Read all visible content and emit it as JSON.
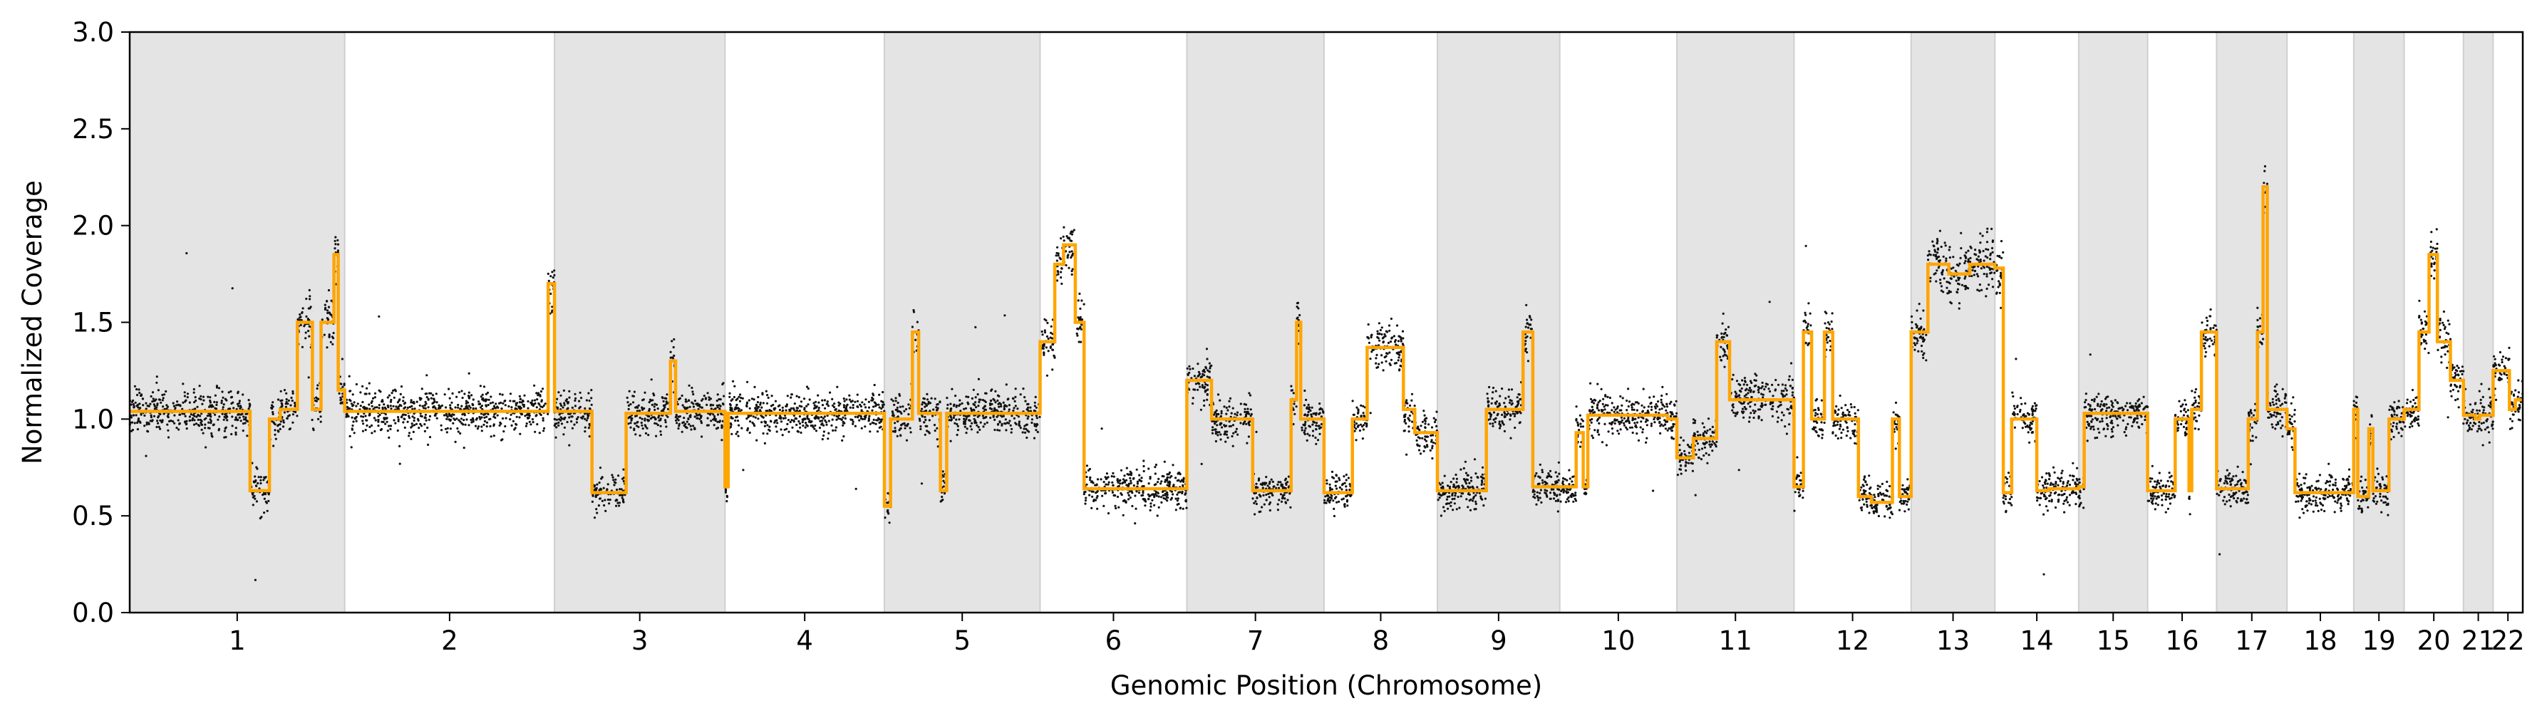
{
  "chart_data": {
    "type": "scatter",
    "title": "",
    "xlabel": "Genomic Position (Chromosome)",
    "ylabel": "Normalized Coverage",
    "ylim": [
      0,
      3.0
    ],
    "yticks": [
      0.0,
      0.5,
      1.0,
      1.5,
      2.0,
      2.5,
      3.0
    ],
    "ytick_labels": [
      "0.0",
      "0.5",
      "1.0",
      "1.5",
      "2.0",
      "2.5",
      "3.0"
    ],
    "grid": false,
    "alternating_chromosome_shading": true,
    "colors": {
      "points": "#111111",
      "segments": "#FFA500",
      "shade": "#E4E4E4",
      "shade_border": "#CFCFCF"
    },
    "chromosomes": [
      {
        "name": "1",
        "label": "1",
        "shaded": true,
        "segments": [
          [
            0.0,
            0.56,
            1.04
          ],
          [
            0.56,
            0.65,
            0.63
          ],
          [
            0.65,
            0.7,
            1.0
          ],
          [
            0.7,
            0.78,
            1.05
          ],
          [
            0.78,
            0.85,
            1.5
          ],
          [
            0.85,
            0.89,
            1.05
          ],
          [
            0.89,
            0.95,
            1.5
          ],
          [
            0.95,
            0.97,
            1.85
          ],
          [
            0.97,
            1.0,
            1.15
          ]
        ]
      },
      {
        "name": "2",
        "label": "2",
        "shaded": false,
        "segments": [
          [
            0.0,
            0.97,
            1.04
          ],
          [
            0.97,
            1.0,
            1.7
          ]
        ]
      },
      {
        "name": "3",
        "label": "3",
        "shaded": true,
        "segments": [
          [
            0.0,
            0.22,
            1.04
          ],
          [
            0.22,
            0.42,
            0.62
          ],
          [
            0.42,
            0.68,
            1.03
          ],
          [
            0.68,
            0.71,
            1.3
          ],
          [
            0.71,
            1.0,
            1.04
          ]
        ]
      },
      {
        "name": "4",
        "label": "4",
        "shaded": false,
        "segments": [
          [
            0.0,
            0.02,
            0.65
          ],
          [
            0.02,
            1.0,
            1.03
          ]
        ]
      },
      {
        "name": "5",
        "label": "5",
        "shaded": true,
        "segments": [
          [
            0.0,
            0.04,
            0.55
          ],
          [
            0.04,
            0.18,
            1.0
          ],
          [
            0.18,
            0.22,
            1.45
          ],
          [
            0.22,
            0.36,
            1.03
          ],
          [
            0.36,
            0.4,
            0.63
          ],
          [
            0.4,
            1.0,
            1.03
          ]
        ]
      },
      {
        "name": "6",
        "label": "6",
        "shaded": false,
        "segments": [
          [
            0.0,
            0.1,
            1.4
          ],
          [
            0.1,
            0.16,
            1.8
          ],
          [
            0.16,
            0.24,
            1.9
          ],
          [
            0.24,
            0.3,
            1.5
          ],
          [
            0.3,
            1.0,
            0.64
          ]
        ]
      },
      {
        "name": "7",
        "label": "7",
        "shaded": true,
        "segments": [
          [
            0.0,
            0.18,
            1.2
          ],
          [
            0.18,
            0.48,
            1.0
          ],
          [
            0.48,
            0.76,
            0.63
          ],
          [
            0.76,
            0.8,
            1.1
          ],
          [
            0.8,
            0.83,
            1.5
          ],
          [
            0.83,
            1.0,
            1.0
          ]
        ]
      },
      {
        "name": "8",
        "label": "8",
        "shaded": false,
        "segments": [
          [
            0.0,
            0.25,
            0.62
          ],
          [
            0.25,
            0.38,
            1.0
          ],
          [
            0.38,
            0.7,
            1.37
          ],
          [
            0.7,
            0.8,
            1.05
          ],
          [
            0.8,
            1.0,
            0.93
          ]
        ]
      },
      {
        "name": "9",
        "label": "9",
        "shaded": true,
        "segments": [
          [
            0.0,
            0.4,
            0.63
          ],
          [
            0.4,
            0.7,
            1.05
          ],
          [
            0.7,
            0.78,
            1.45
          ],
          [
            0.78,
            1.0,
            0.65
          ]
        ]
      },
      {
        "name": "10",
        "label": "10",
        "shaded": false,
        "segments": [
          [
            0.0,
            0.14,
            0.65
          ],
          [
            0.14,
            0.2,
            0.93
          ],
          [
            0.2,
            0.24,
            0.65
          ],
          [
            0.24,
            0.92,
            1.02
          ],
          [
            0.92,
            1.0,
            1.0
          ]
        ]
      },
      {
        "name": "11",
        "label": "11",
        "shaded": true,
        "segments": [
          [
            0.0,
            0.14,
            0.8
          ],
          [
            0.14,
            0.34,
            0.9
          ],
          [
            0.34,
            0.45,
            1.4
          ],
          [
            0.45,
            1.0,
            1.1
          ]
        ]
      },
      {
        "name": "12",
        "label": "12",
        "shaded": false,
        "segments": [
          [
            0.0,
            0.08,
            0.65
          ],
          [
            0.08,
            0.15,
            1.45
          ],
          [
            0.15,
            0.26,
            1.0
          ],
          [
            0.26,
            0.33,
            1.45
          ],
          [
            0.33,
            0.55,
            1.0
          ],
          [
            0.55,
            0.66,
            0.6
          ],
          [
            0.66,
            0.84,
            0.57
          ],
          [
            0.84,
            0.9,
            1.0
          ],
          [
            0.9,
            1.0,
            0.6
          ]
        ]
      },
      {
        "name": "13",
        "label": "13",
        "shaded": true,
        "segments": [
          [
            0.0,
            0.2,
            1.45
          ],
          [
            0.2,
            0.45,
            1.8
          ],
          [
            0.45,
            0.7,
            1.75
          ],
          [
            0.7,
            1.0,
            1.8
          ]
        ]
      },
      {
        "name": "14",
        "label": "14",
        "shaded": false,
        "segments": [
          [
            0.0,
            0.1,
            1.78
          ],
          [
            0.1,
            0.2,
            0.62
          ],
          [
            0.2,
            0.5,
            1.0
          ],
          [
            0.5,
            0.64,
            0.63
          ],
          [
            0.64,
            1.0,
            0.64
          ]
        ]
      },
      {
        "name": "15",
        "label": "15",
        "shaded": true,
        "segments": [
          [
            0.0,
            0.08,
            0.65
          ],
          [
            0.08,
            1.0,
            1.03
          ]
        ]
      },
      {
        "name": "16",
        "label": "16",
        "shaded": false,
        "segments": [
          [
            0.0,
            0.4,
            0.63
          ],
          [
            0.4,
            0.6,
            1.0
          ],
          [
            0.6,
            0.64,
            0.63
          ],
          [
            0.64,
            0.78,
            1.05
          ],
          [
            0.78,
            1.0,
            1.45
          ]
        ]
      },
      {
        "name": "17",
        "label": "17",
        "shaded": true,
        "segments": [
          [
            0.0,
            0.45,
            0.64
          ],
          [
            0.45,
            0.58,
            1.0
          ],
          [
            0.58,
            0.66,
            1.45
          ],
          [
            0.66,
            0.72,
            2.2
          ],
          [
            0.72,
            1.0,
            1.05
          ]
        ]
      },
      {
        "name": "18",
        "label": "18",
        "shaded": false,
        "segments": [
          [
            0.0,
            0.12,
            0.95
          ],
          [
            0.12,
            1.0,
            0.62
          ]
        ]
      },
      {
        "name": "19",
        "label": "19",
        "shaded": true,
        "segments": [
          [
            0.0,
            0.08,
            1.05
          ],
          [
            0.08,
            0.3,
            0.6
          ],
          [
            0.3,
            0.38,
            0.95
          ],
          [
            0.38,
            0.7,
            0.63
          ],
          [
            0.7,
            1.0,
            1.0
          ]
        ]
      },
      {
        "name": "20",
        "label": "20",
        "shaded": false,
        "segments": [
          [
            0.0,
            0.25,
            1.05
          ],
          [
            0.25,
            0.42,
            1.45
          ],
          [
            0.42,
            0.56,
            1.85
          ],
          [
            0.56,
            0.78,
            1.4
          ],
          [
            0.78,
            1.0,
            1.2
          ]
        ]
      },
      {
        "name": "21",
        "label": "21",
        "shaded": true,
        "segments": [
          [
            0.0,
            0.4,
            1.02
          ],
          [
            0.4,
            0.55,
            1.0
          ],
          [
            0.55,
            1.0,
            1.02
          ]
        ]
      },
      {
        "name": "22",
        "label": "22",
        "shaded": false,
        "segments": [
          [
            0.0,
            0.55,
            1.25
          ],
          [
            0.55,
            0.75,
            1.05
          ],
          [
            0.75,
            1.0,
            1.1
          ]
        ]
      }
    ]
  }
}
